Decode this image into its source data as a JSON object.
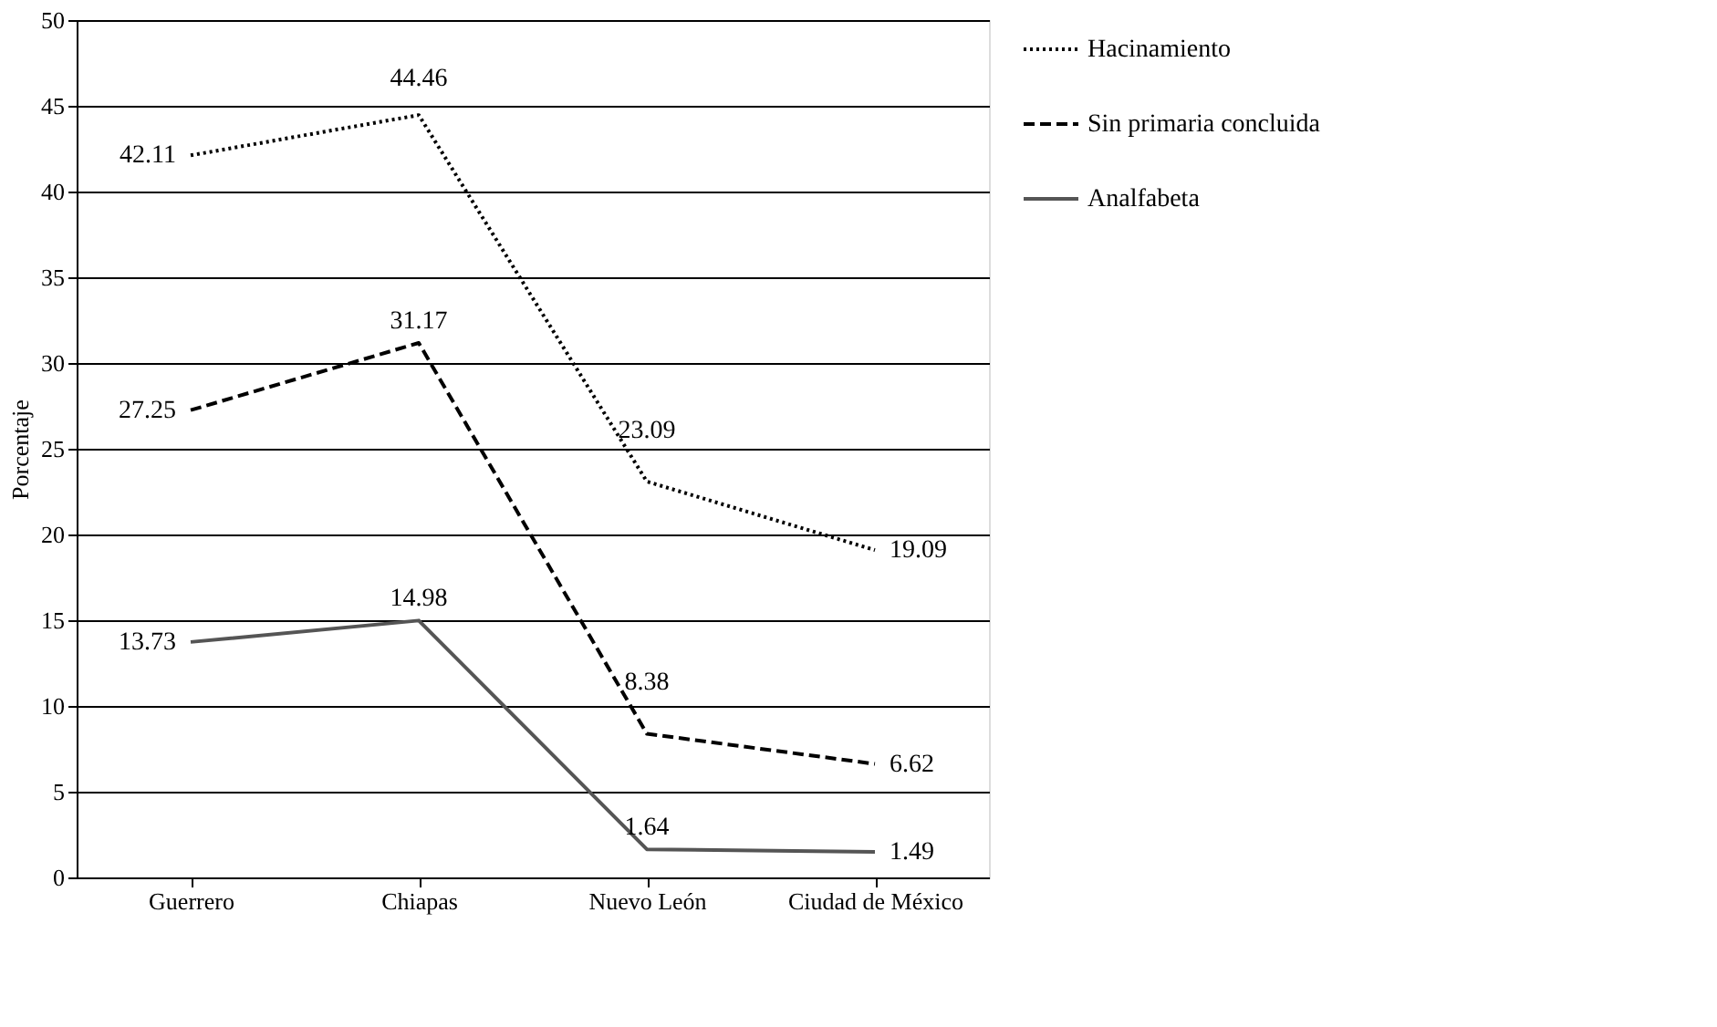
{
  "chart_data": {
    "type": "line",
    "ylabel": "Porcentaje",
    "categories": [
      "Guerrero",
      "Chiapas",
      "Nuevo León",
      "Ciudad de México"
    ],
    "series": [
      {
        "name": "Hacinamiento",
        "color": "#000000",
        "line_style": "dotted",
        "values": [
          42.11,
          44.46,
          23.09,
          19.09
        ]
      },
      {
        "name": "Sin primaria concluida",
        "color": "#000000",
        "line_style": "dashed",
        "values": [
          27.25,
          31.17,
          8.38,
          6.62
        ]
      },
      {
        "name": "Analfabeta",
        "color": "#555555",
        "line_style": "solid",
        "values": [
          13.73,
          14.98,
          1.64,
          1.49
        ]
      }
    ],
    "ylim": [
      0,
      50
    ],
    "yticks": [
      0,
      5,
      10,
      15,
      20,
      25,
      30,
      35,
      40,
      45,
      50
    ],
    "grid": "y",
    "legend": "right",
    "data_labels": true
  }
}
